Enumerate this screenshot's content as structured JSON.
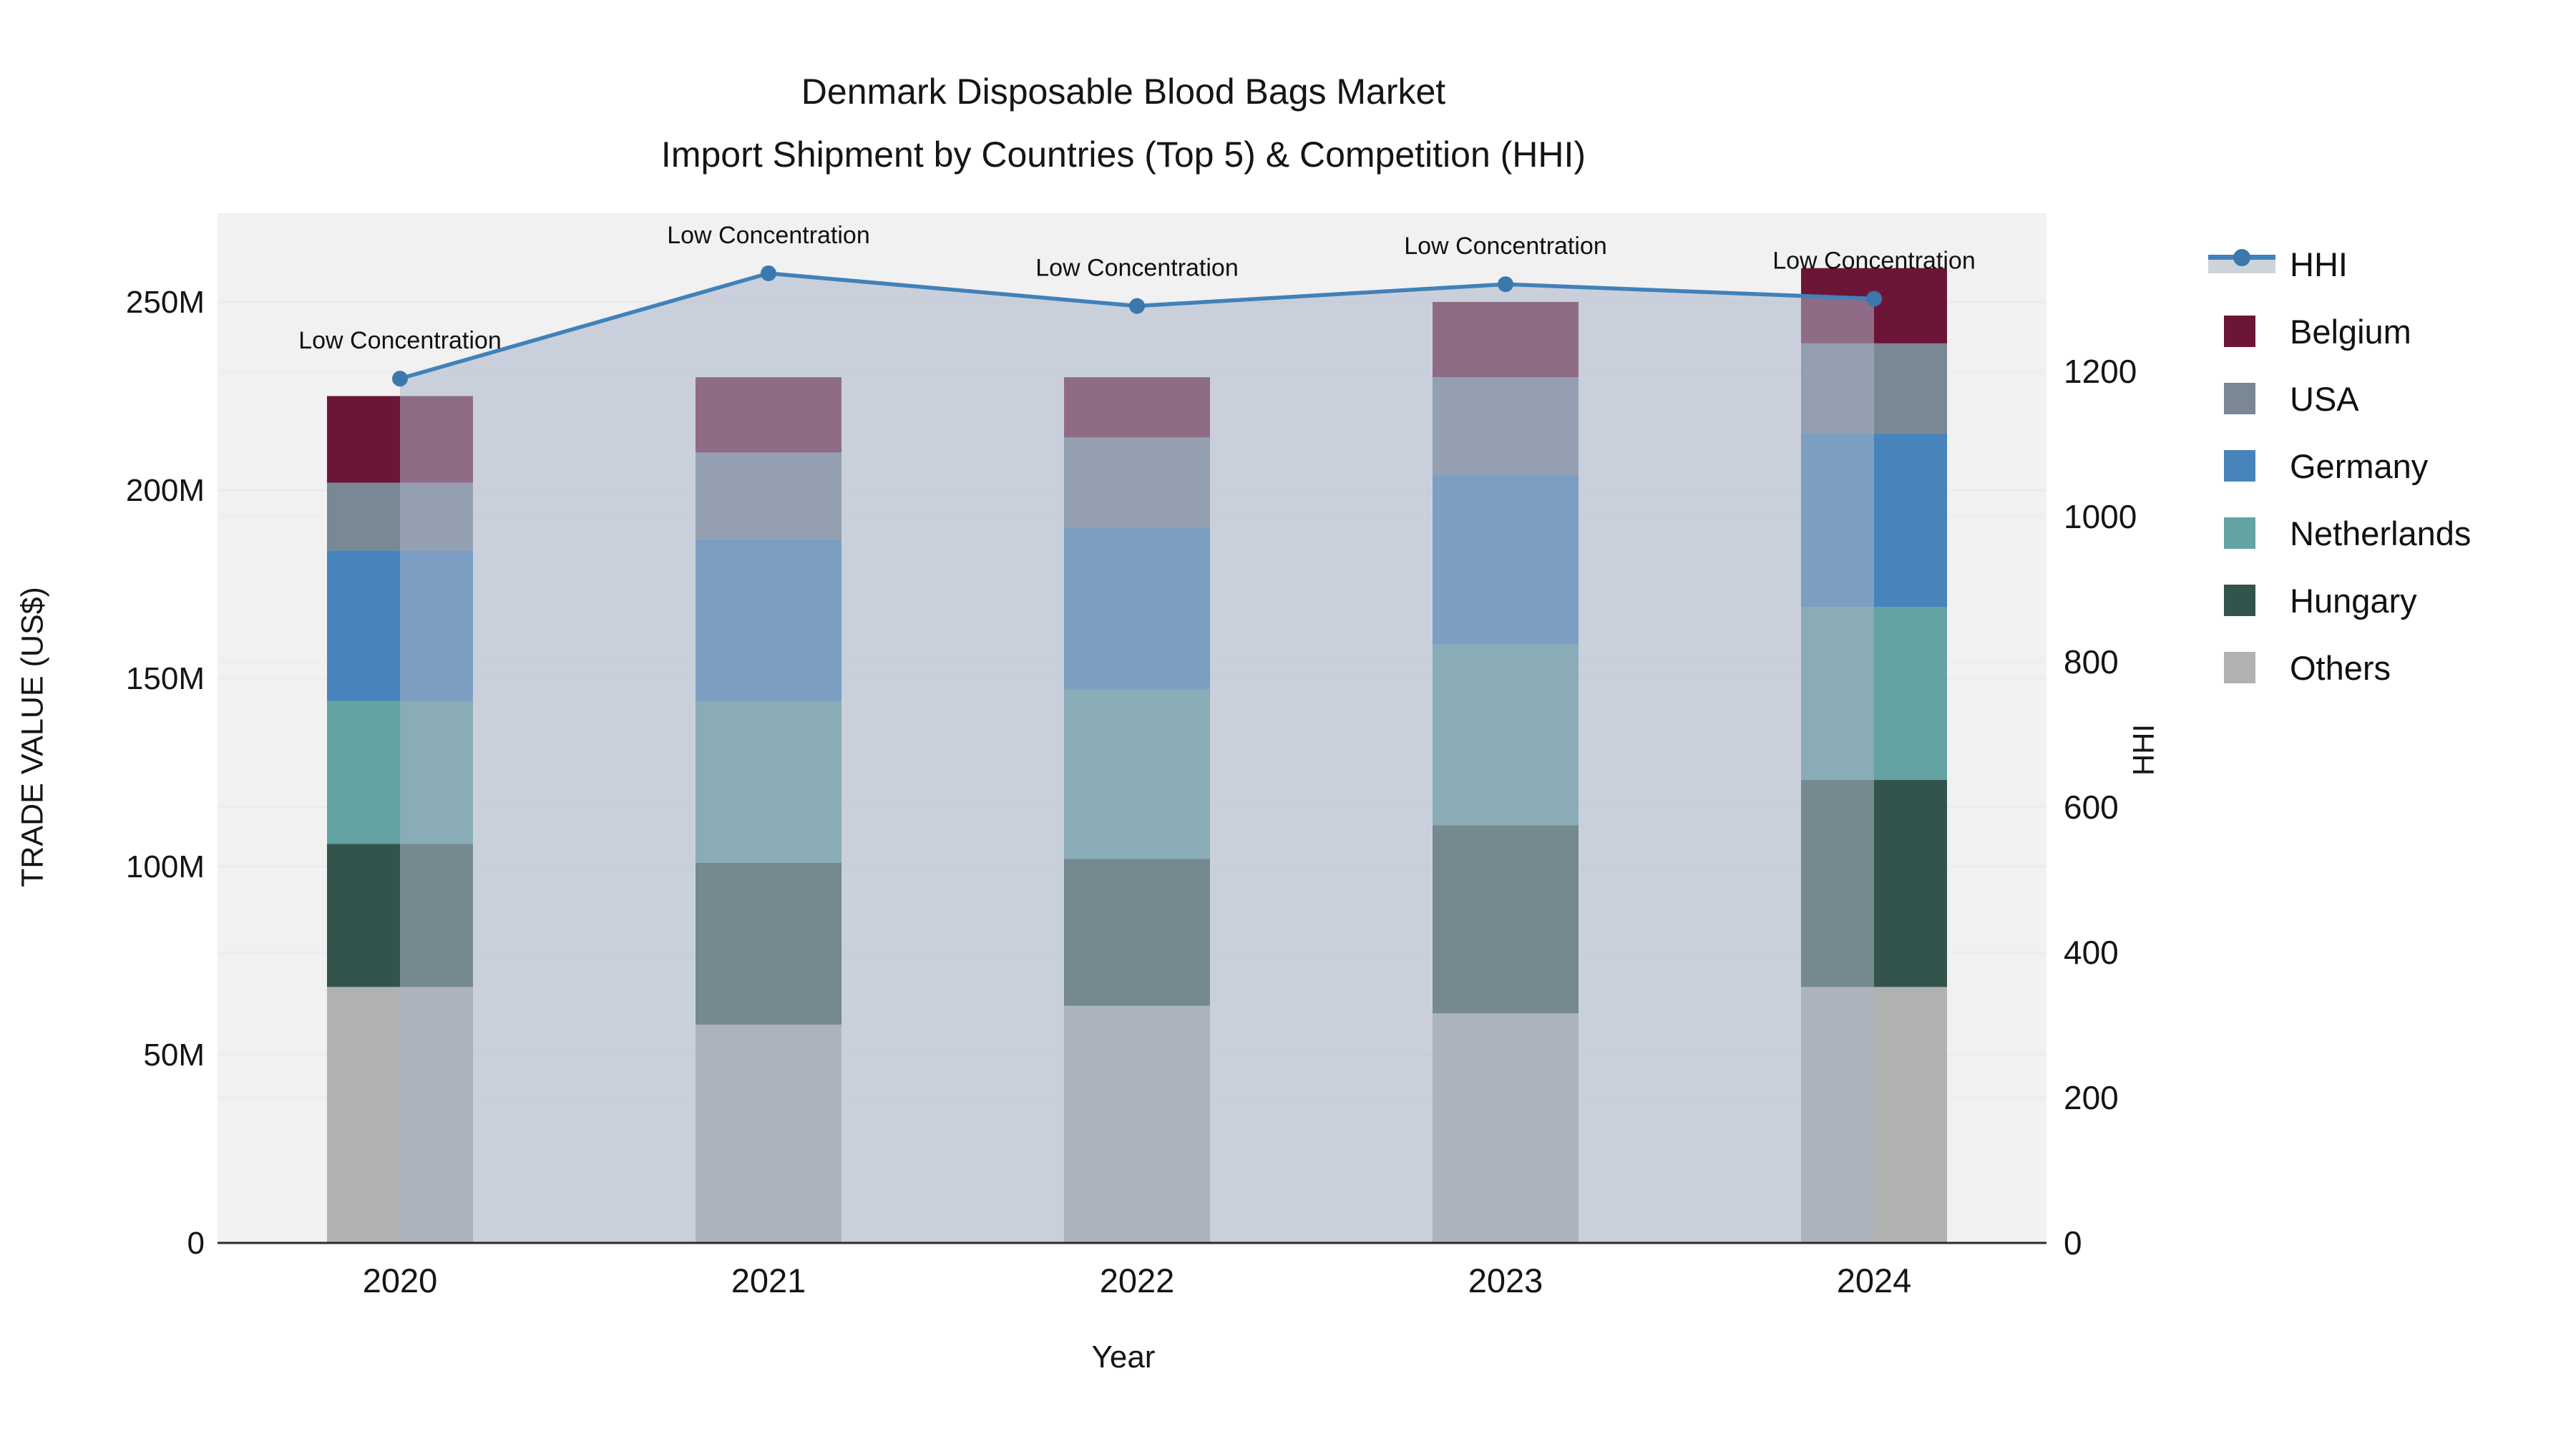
{
  "title": {
    "line1": "Denmark Disposable Blood Bags Market",
    "line2": "Import Shipment by Countries (Top 5) & Competition (HHI)"
  },
  "chart_data": {
    "type": "bar+line",
    "categories": [
      "2020",
      "2021",
      "2022",
      "2023",
      "2024"
    ],
    "bar_unit": "M US$",
    "series": [
      {
        "name": "Others",
        "color": "#b0b1b1",
        "values": [
          68,
          58,
          63,
          61,
          68
        ]
      },
      {
        "name": "Hungary",
        "color": "#33544c",
        "values": [
          38,
          43,
          39,
          50,
          55
        ]
      },
      {
        "name": "Netherlands",
        "color": "#63a3a1",
        "values": [
          38,
          43,
          45,
          48,
          46
        ]
      },
      {
        "name": "Germany",
        "color": "#4684bb",
        "values": [
          40,
          43,
          43,
          45,
          46
        ]
      },
      {
        "name": "USA",
        "color": "#7a8795",
        "values": [
          18,
          23,
          24,
          26,
          24
        ]
      },
      {
        "name": "Belgium",
        "color": "#6d1537",
        "values": [
          23,
          20,
          16,
          20,
          20
        ]
      }
    ],
    "line": {
      "name": "HHI",
      "values": [
        1190,
        1335,
        1290,
        1320,
        1300
      ],
      "color": "#4181b8",
      "marker_color": "#3c77ad",
      "fill_color": "rgba(170,181,200,0.55)"
    },
    "annotations": [
      "Low Concentration",
      "Low Concentration",
      "Low Concentration",
      "Low Concentration",
      "Low Concentration"
    ],
    "xlabel": "Year",
    "ylabel_left": "TRADE VALUE (US$)",
    "ylabel_right": "HHI",
    "yticks_left": {
      "labels": [
        "0",
        "50M",
        "100M",
        "150M",
        "200M",
        "250M"
      ],
      "values": [
        0,
        50,
        100,
        150,
        200,
        250
      ]
    },
    "yticks_right": {
      "labels": [
        "0",
        "200",
        "400",
        "600",
        "800",
        "1000",
        "1200"
      ],
      "values": [
        0,
        200,
        400,
        600,
        800,
        1000,
        1200
      ]
    },
    "ylim_left": [
      0,
      273
    ],
    "ylim_right": [
      0,
      1410
    ],
    "grid": true,
    "legend_position": "right",
    "legend_order": [
      "HHI",
      "Belgium",
      "USA",
      "Germany",
      "Netherlands",
      "Hungary",
      "Others"
    ]
  },
  "colors": {
    "plot_bg": "#f1f1f2",
    "grid": "#e9ebee",
    "axis_line": "#2b2b2b",
    "text": "#151515"
  }
}
